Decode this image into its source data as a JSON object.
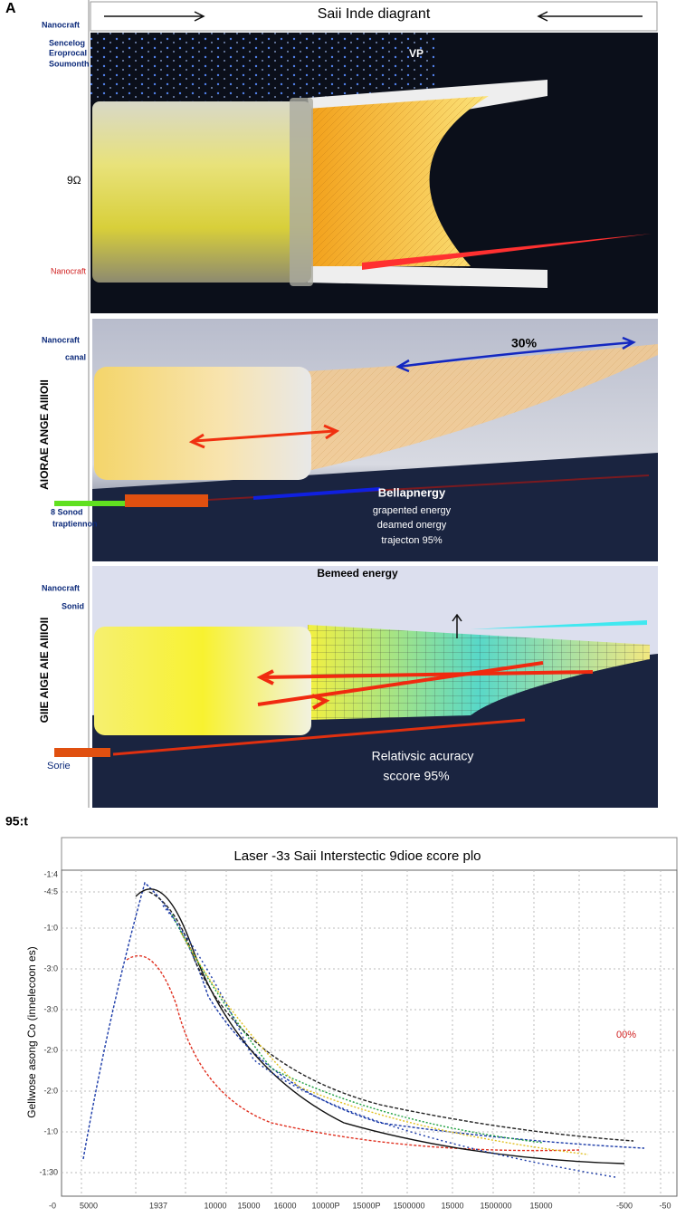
{
  "panel_label": "A",
  "header": {
    "title": "Saii Inde diagrant"
  },
  "panel_1": {
    "side_labels": [
      "Nanocraft",
      "Sencelog",
      "Eroprocal",
      "Soumonth"
    ],
    "axis_label": "9Ω",
    "red_label": "Nanocraft",
    "annotation": "VP"
  },
  "panel_2": {
    "side_labels": [
      "Nanocraft",
      "canal"
    ],
    "vertical_label": "AIORAE ANGE AIIIOII",
    "percent": "30%",
    "energy_lines": [
      "Bellapnergy",
      "grapented energy",
      "deamed onergy",
      "trajecton 95%"
    ],
    "source_labels": [
      "8 Sonod",
      "traptiennon"
    ]
  },
  "panel_3": {
    "title": "Bemeed energy",
    "side_labels": [
      "Nanocraft",
      "Sonid"
    ],
    "vertical_label": "GIIE AIGE AIE AIIIOII",
    "accuracy_lines": [
      "Relativsic acuracy",
      "sccore 95%"
    ],
    "source_label": "Sorie"
  },
  "section_label": "95:t",
  "plot": {
    "title": "Laser -3з Saii Interstectic 9dioe ɛcore plo",
    "y_label": "Gellwose asong Co (innelecoon es)",
    "annotation": "00%",
    "y_ticks": [
      "-1:4",
      "-4:5",
      "-1:0",
      "-3:0",
      "-3:0",
      "-2:0",
      "-2:0",
      "-1:0",
      "-1:30"
    ],
    "x_ticks": [
      "-0",
      "5000",
      "1937",
      "10000",
      "15000",
      "16000",
      "10000P",
      "15000P",
      "1500000",
      "15000",
      "1500000",
      "15000",
      "-500",
      "-50"
    ]
  }
}
